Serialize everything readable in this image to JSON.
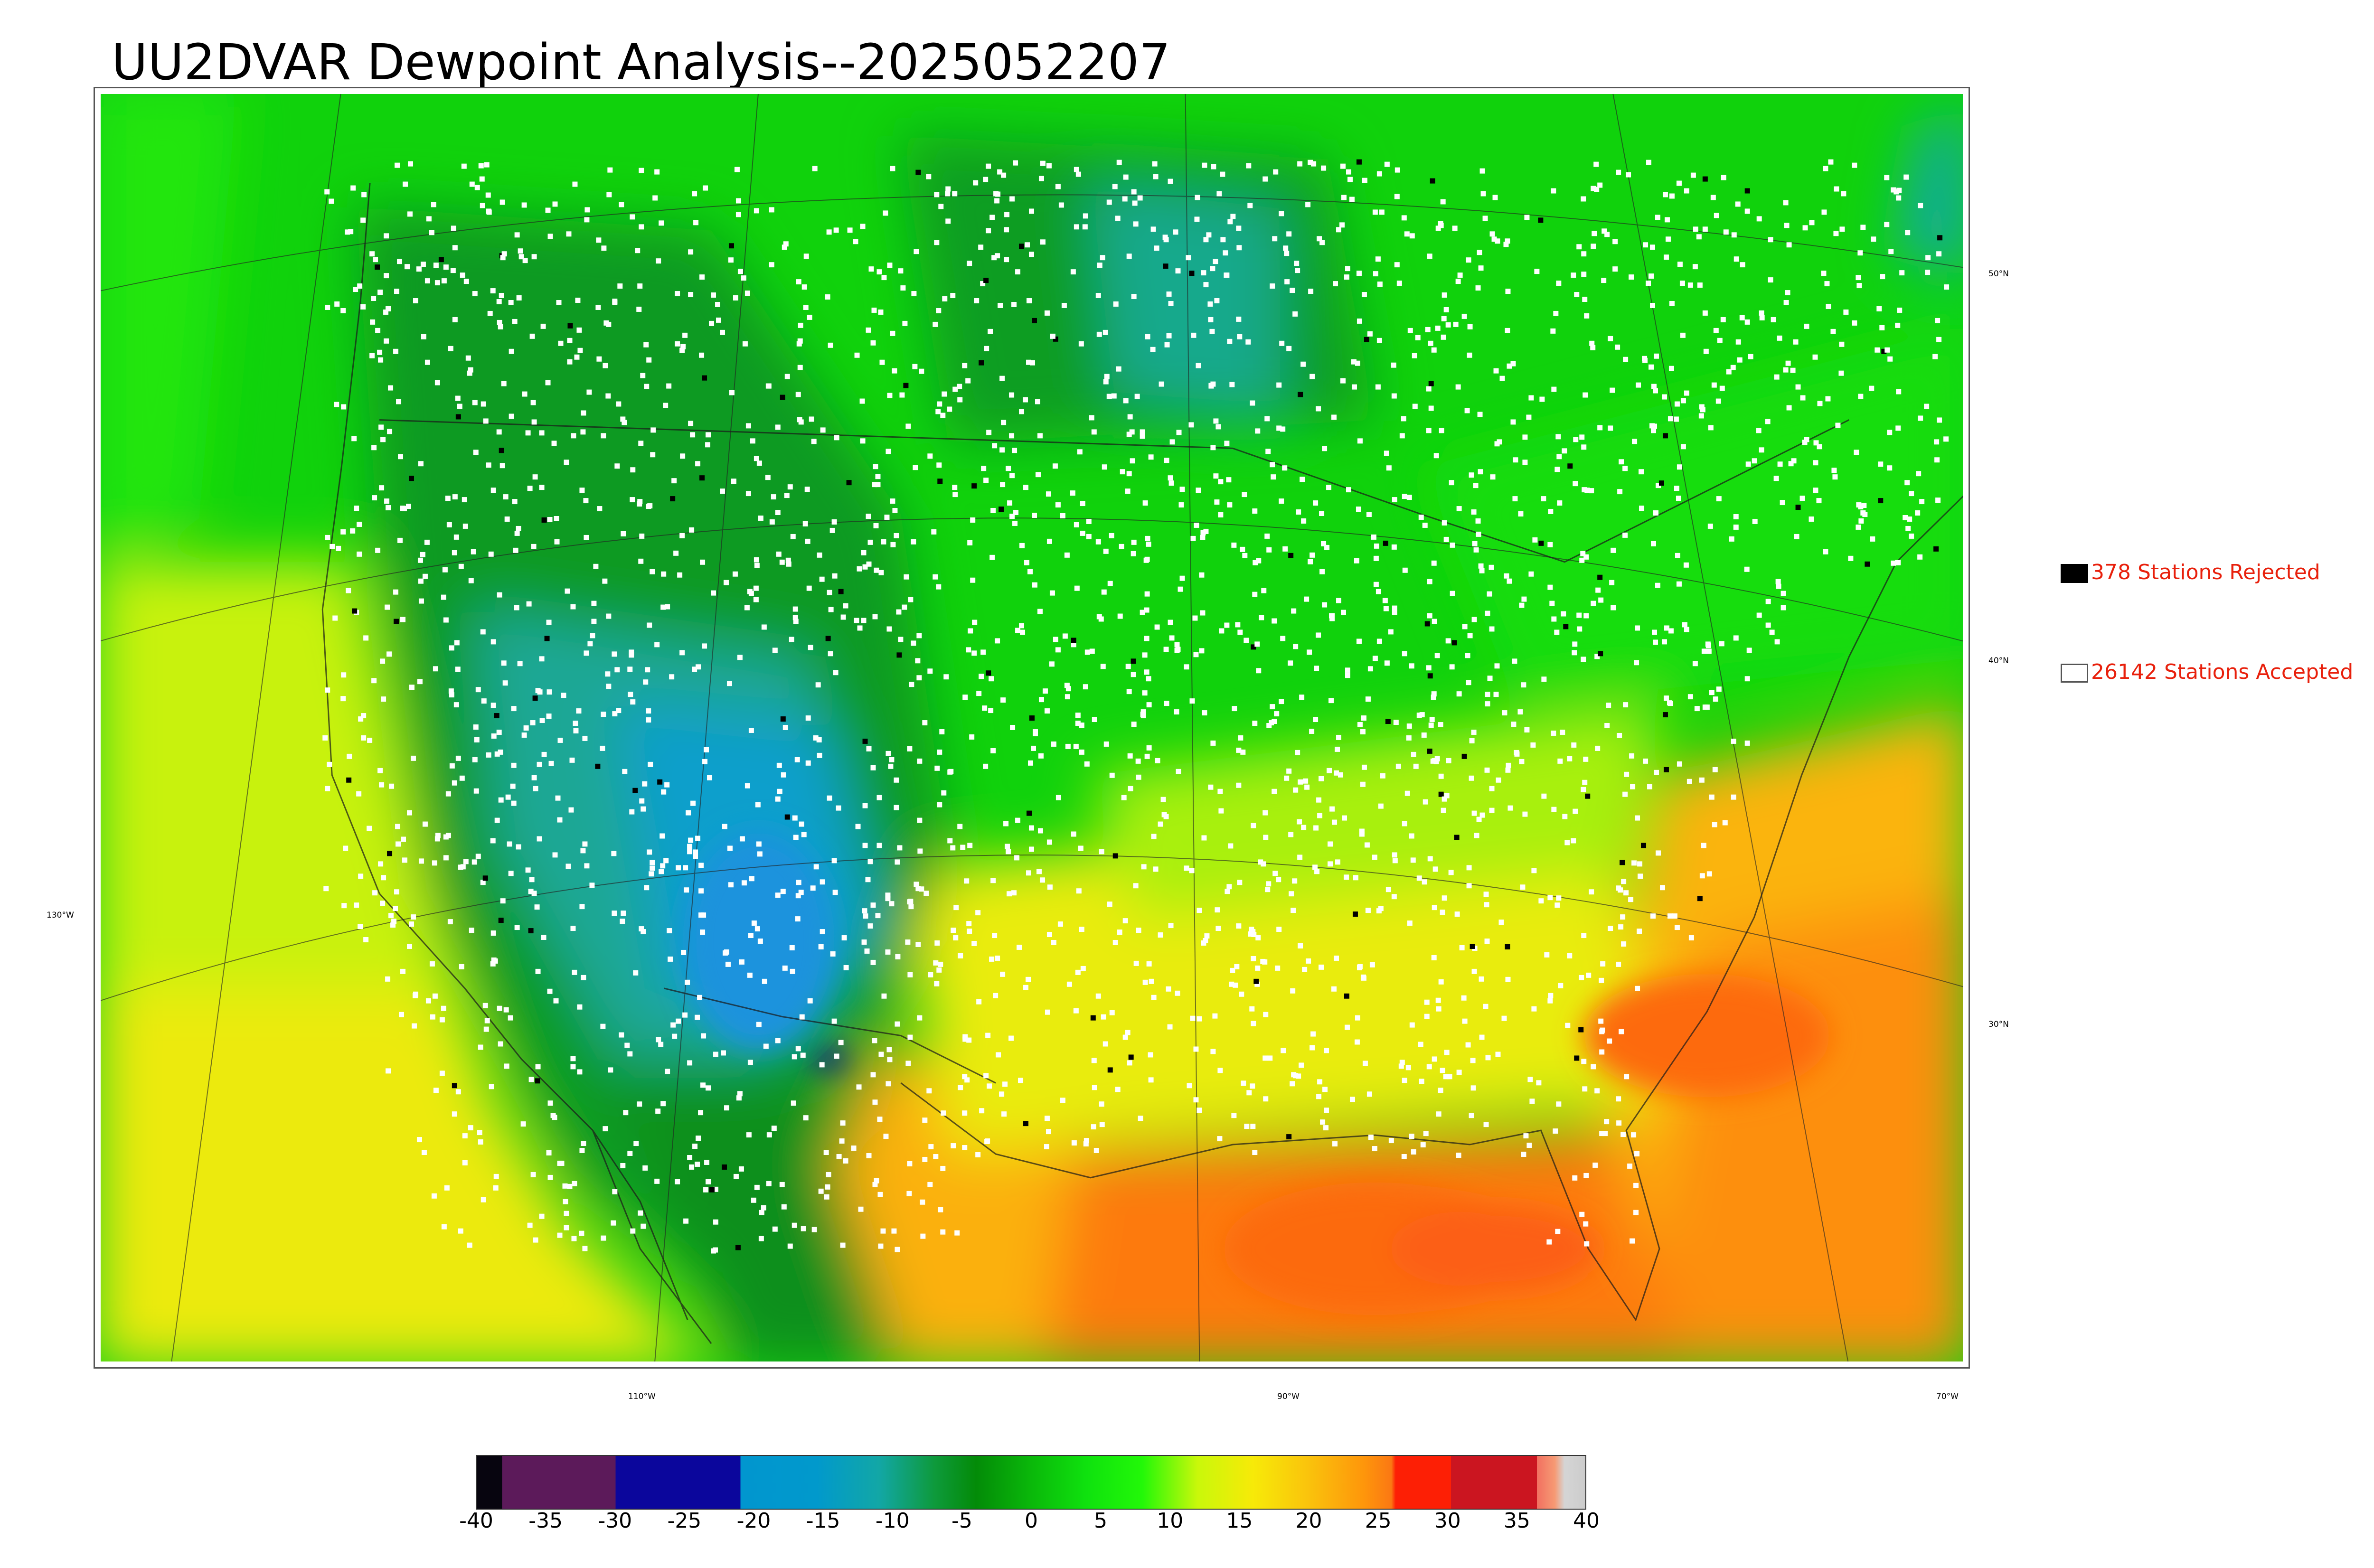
{
  "title": "UU2DVAR Dewpoint Analysis--2025052207",
  "map": {
    "lat_labels": [
      "50°N",
      "40°N",
      "30°N"
    ],
    "lon_labels": [
      "130°W",
      "110°W",
      "90°W",
      "70°W"
    ]
  },
  "legend": {
    "rejected": "378 Stations Rejected",
    "accepted": "26142 Stations Accepted",
    "rejected_color": "#000000",
    "accepted_color": "#ffffff",
    "text_color": "#e8200c"
  },
  "colorbar": {
    "ticks": [
      "-40",
      "-35",
      "-30",
      "-25",
      "-20",
      "-15",
      "-10",
      "-5",
      "0",
      "5",
      "10",
      "15",
      "20",
      "25",
      "30",
      "35",
      "40"
    ],
    "stops": [
      {
        "v": -40,
        "c": "#07050f"
      },
      {
        "v": -38.2,
        "c": "#07050f"
      },
      {
        "v": -38.2,
        "c": "#5c1a5a"
      },
      {
        "v": -30,
        "c": "#5c1a5a"
      },
      {
        "v": -30,
        "c": "#0b069c"
      },
      {
        "v": -21,
        "c": "#0b069c"
      },
      {
        "v": -21,
        "c": "#0196cf"
      },
      {
        "v": -15.5,
        "c": "#0199cc"
      },
      {
        "v": -11,
        "c": "#12a7a6"
      },
      {
        "v": -7,
        "c": "#0e9a3c"
      },
      {
        "v": -4,
        "c": "#038b08"
      },
      {
        "v": 0,
        "c": "#0ab80a"
      },
      {
        "v": 4,
        "c": "#0fe20e"
      },
      {
        "v": 8,
        "c": "#22f808"
      },
      {
        "v": 12,
        "c": "#c9f80a"
      },
      {
        "v": 16,
        "c": "#f7ea08"
      },
      {
        "v": 20,
        "c": "#fac30c"
      },
      {
        "v": 24,
        "c": "#fe960b"
      },
      {
        "v": 26,
        "c": "#fb7813"
      },
      {
        "v": 26.3,
        "c": "#fd1f05"
      },
      {
        "v": 30.3,
        "c": "#fd1f05"
      },
      {
        "v": 30.3,
        "c": "#cb1520"
      },
      {
        "v": 36.5,
        "c": "#cb1520"
      },
      {
        "v": 36.5,
        "c": "#f27060"
      },
      {
        "v": 37.8,
        "c": "#f69a74"
      },
      {
        "v": 38.5,
        "c": "#d5d5d5"
      },
      {
        "v": 40,
        "c": "#cccccc"
      }
    ]
  }
}
